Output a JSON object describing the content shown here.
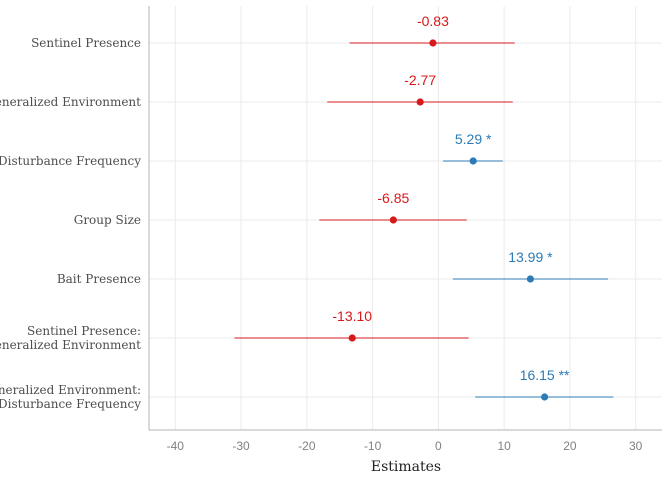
{
  "chart_data": {
    "type": "forest",
    "xlabel": "Estimates",
    "xlim": [
      -44,
      34
    ],
    "x_ticks": [
      -40,
      -30,
      -20,
      -10,
      0,
      10,
      20,
      30
    ],
    "grid": true,
    "colors": {
      "negative": "#d7191c",
      "positive": "#2c7bb6"
    },
    "terms": [
      {
        "label": [
          "Sentinel Presence"
        ],
        "estimate": -0.83,
        "ci": [
          -13.5,
          11.6
        ],
        "text": "-0.83"
      },
      {
        "label": [
          "Generalized Environment"
        ],
        "estimate": -2.77,
        "ci": [
          -16.9,
          11.3
        ],
        "text": "-2.77"
      },
      {
        "label": [
          "Disturbance Frequency"
        ],
        "estimate": 5.29,
        "ci": [
          0.7,
          9.8
        ],
        "text": "5.29 *"
      },
      {
        "label": [
          "Group Size"
        ],
        "estimate": -6.85,
        "ci": [
          -18.1,
          4.3
        ],
        "text": "-6.85"
      },
      {
        "label": [
          "Bait Presence"
        ],
        "estimate": 13.99,
        "ci": [
          2.2,
          25.8
        ],
        "text": "13.99 *"
      },
      {
        "label": [
          "Sentinel Presence:",
          "Generalized Environment"
        ],
        "estimate": -13.1,
        "ci": [
          -31.0,
          4.6
        ],
        "text": "-13.10"
      },
      {
        "label": [
          "Generalized Environment:",
          "Disturbance Frequency"
        ],
        "estimate": 16.15,
        "ci": [
          5.6,
          26.6
        ],
        "text": "16.15 **"
      }
    ]
  }
}
